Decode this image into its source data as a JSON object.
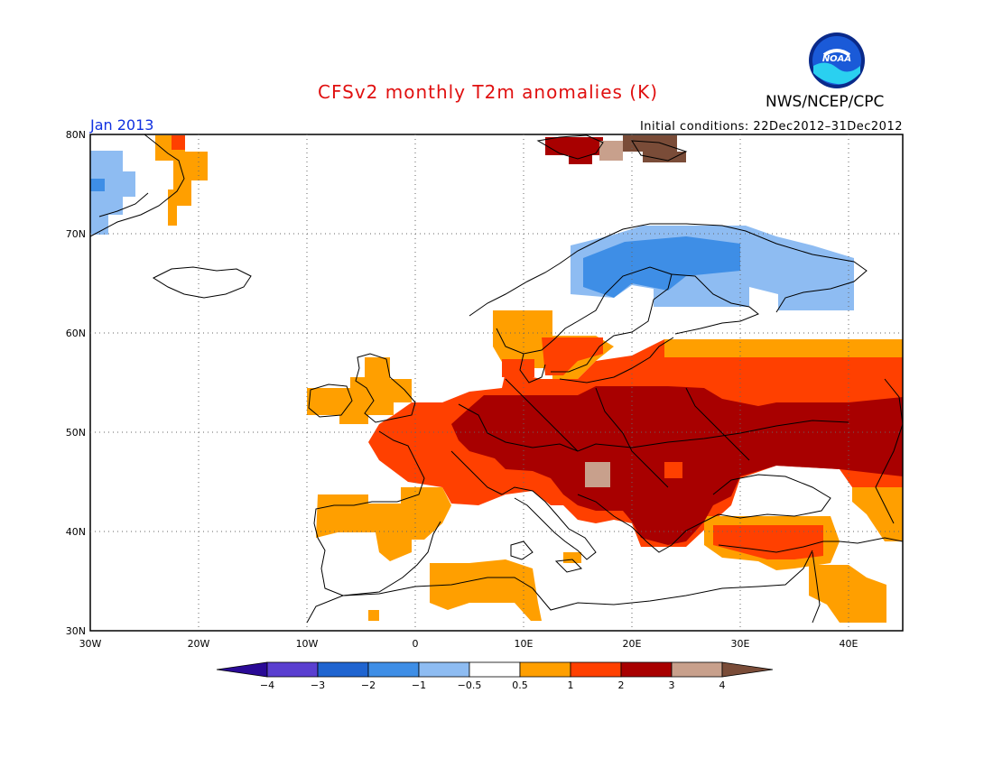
{
  "title": "CFSv2 monthly T2m anomalies (K)",
  "agency": "NWS/NCEP/CPC",
  "logo_text": "NOAA",
  "valid_month": "Jan 2013",
  "initial_conditions": "Initial conditions: 22Dec2012–31Dec2012",
  "map": {
    "lon_labels": [
      "30W",
      "20W",
      "10W",
      "0",
      "10E",
      "20E",
      "30E",
      "40E"
    ],
    "lat_labels": [
      "80N",
      "70N",
      "60N",
      "50N",
      "40N",
      "30N"
    ],
    "domain": {
      "lon_min": -30,
      "lon_max": 45,
      "lat_min": 30,
      "lat_max": 80
    }
  },
  "legend": {
    "colors": [
      "#2a0a96",
      "#5a3fd0",
      "#1f64d0",
      "#3e8ee6",
      "#8ebcf2",
      "#ffffff",
      "#ff9f00",
      "#ff4000",
      "#a80000",
      "#c8a08c",
      "#7a4c38"
    ],
    "tick_labels": [
      "−4",
      "−3",
      "−2",
      "−1",
      "−0.5",
      "0.5",
      "1",
      "2",
      "3",
      "4"
    ]
  },
  "anomaly_colors": {
    "cold_strong": "#3e8ee6",
    "cold_weak": "#8ebcf2",
    "warm_weak": "#ff9f00",
    "warm_mid": "#ff4000",
    "warm_strong": "#a80000",
    "warm_vstrong": "#c8a08c",
    "warm_extreme": "#7a4c38"
  }
}
